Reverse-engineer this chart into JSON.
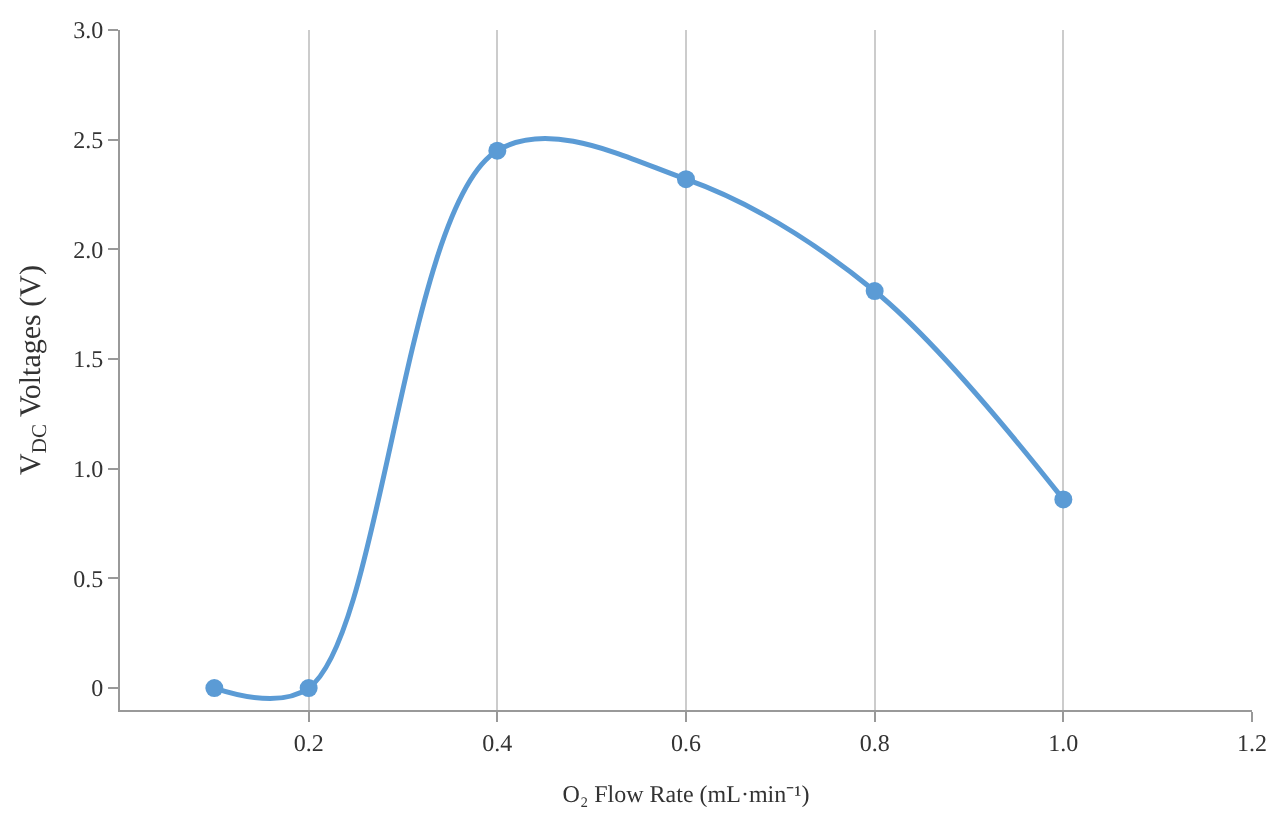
{
  "chart_data": {
    "type": "line",
    "xlabel": "O₂ Flow Rate (mL·min⁻¹)",
    "ylabel": "V$_{DC}$ Voltages (V)",
    "x": [
      0.1,
      0.2,
      0.4,
      0.6,
      0.8,
      1.0
    ],
    "series": [
      {
        "color": "#5b9bd5",
        "values": [
          0,
          0,
          2.45,
          2.32,
          1.81,
          0.86
        ]
      }
    ],
    "xlim": [
      0,
      1.2
    ],
    "xticks": [
      0.2,
      0.4,
      0.6,
      0.8,
      {
        "value": 1,
        "label": "1.0"
      },
      1.2
    ],
    "ylim": [
      -0.1,
      3.0
    ],
    "yticks": [
      0,
      0.5,
      {
        "value": 1,
        "label": "1.0"
      },
      1.5,
      {
        "value": 2,
        "label": "2.0"
      },
      2.5,
      {
        "value": 3,
        "label": "3.0"
      }
    ],
    "grid": "x",
    "marker": "circle",
    "line_style": "solid"
  }
}
